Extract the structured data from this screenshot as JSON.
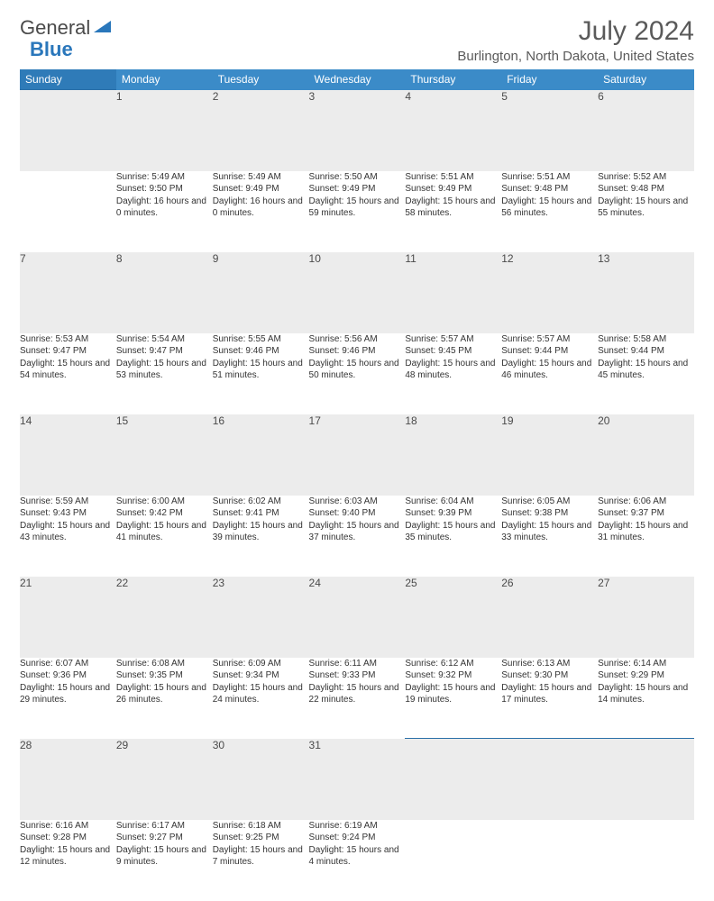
{
  "logo": {
    "word1": "General",
    "word2": "Blue"
  },
  "title": "July 2024",
  "location": "Burlington, North Dakota, United States",
  "colors": {
    "header_bg": "#3b8bc8",
    "header_text": "#ffffff",
    "daynum_bg": "#ececec",
    "row_divider": "#2a6fa8",
    "body_text": "#333333",
    "title_text": "#5a5a5a",
    "logo_gray": "#4a4a4a",
    "logo_blue": "#2a77bb"
  },
  "weekdays": [
    "Sunday",
    "Monday",
    "Tuesday",
    "Wednesday",
    "Thursday",
    "Friday",
    "Saturday"
  ],
  "weeks": [
    {
      "days": [
        null,
        {
          "n": "1",
          "sr": "5:49 AM",
          "ss": "9:50 PM",
          "dl": "16 hours and 0 minutes."
        },
        {
          "n": "2",
          "sr": "5:49 AM",
          "ss": "9:49 PM",
          "dl": "16 hours and 0 minutes."
        },
        {
          "n": "3",
          "sr": "5:50 AM",
          "ss": "9:49 PM",
          "dl": "15 hours and 59 minutes."
        },
        {
          "n": "4",
          "sr": "5:51 AM",
          "ss": "9:49 PM",
          "dl": "15 hours and 58 minutes."
        },
        {
          "n": "5",
          "sr": "5:51 AM",
          "ss": "9:48 PM",
          "dl": "15 hours and 56 minutes."
        },
        {
          "n": "6",
          "sr": "5:52 AM",
          "ss": "9:48 PM",
          "dl": "15 hours and 55 minutes."
        }
      ]
    },
    {
      "days": [
        {
          "n": "7",
          "sr": "5:53 AM",
          "ss": "9:47 PM",
          "dl": "15 hours and 54 minutes."
        },
        {
          "n": "8",
          "sr": "5:54 AM",
          "ss": "9:47 PM",
          "dl": "15 hours and 53 minutes."
        },
        {
          "n": "9",
          "sr": "5:55 AM",
          "ss": "9:46 PM",
          "dl": "15 hours and 51 minutes."
        },
        {
          "n": "10",
          "sr": "5:56 AM",
          "ss": "9:46 PM",
          "dl": "15 hours and 50 minutes."
        },
        {
          "n": "11",
          "sr": "5:57 AM",
          "ss": "9:45 PM",
          "dl": "15 hours and 48 minutes."
        },
        {
          "n": "12",
          "sr": "5:57 AM",
          "ss": "9:44 PM",
          "dl": "15 hours and 46 minutes."
        },
        {
          "n": "13",
          "sr": "5:58 AM",
          "ss": "9:44 PM",
          "dl": "15 hours and 45 minutes."
        }
      ]
    },
    {
      "days": [
        {
          "n": "14",
          "sr": "5:59 AM",
          "ss": "9:43 PM",
          "dl": "15 hours and 43 minutes."
        },
        {
          "n": "15",
          "sr": "6:00 AM",
          "ss": "9:42 PM",
          "dl": "15 hours and 41 minutes."
        },
        {
          "n": "16",
          "sr": "6:02 AM",
          "ss": "9:41 PM",
          "dl": "15 hours and 39 minutes."
        },
        {
          "n": "17",
          "sr": "6:03 AM",
          "ss": "9:40 PM",
          "dl": "15 hours and 37 minutes."
        },
        {
          "n": "18",
          "sr": "6:04 AM",
          "ss": "9:39 PM",
          "dl": "15 hours and 35 minutes."
        },
        {
          "n": "19",
          "sr": "6:05 AM",
          "ss": "9:38 PM",
          "dl": "15 hours and 33 minutes."
        },
        {
          "n": "20",
          "sr": "6:06 AM",
          "ss": "9:37 PM",
          "dl": "15 hours and 31 minutes."
        }
      ]
    },
    {
      "days": [
        {
          "n": "21",
          "sr": "6:07 AM",
          "ss": "9:36 PM",
          "dl": "15 hours and 29 minutes."
        },
        {
          "n": "22",
          "sr": "6:08 AM",
          "ss": "9:35 PM",
          "dl": "15 hours and 26 minutes."
        },
        {
          "n": "23",
          "sr": "6:09 AM",
          "ss": "9:34 PM",
          "dl": "15 hours and 24 minutes."
        },
        {
          "n": "24",
          "sr": "6:11 AM",
          "ss": "9:33 PM",
          "dl": "15 hours and 22 minutes."
        },
        {
          "n": "25",
          "sr": "6:12 AM",
          "ss": "9:32 PM",
          "dl": "15 hours and 19 minutes."
        },
        {
          "n": "26",
          "sr": "6:13 AM",
          "ss": "9:30 PM",
          "dl": "15 hours and 17 minutes."
        },
        {
          "n": "27",
          "sr": "6:14 AM",
          "ss": "9:29 PM",
          "dl": "15 hours and 14 minutes."
        }
      ]
    },
    {
      "days": [
        {
          "n": "28",
          "sr": "6:16 AM",
          "ss": "9:28 PM",
          "dl": "15 hours and 12 minutes."
        },
        {
          "n": "29",
          "sr": "6:17 AM",
          "ss": "9:27 PM",
          "dl": "15 hours and 9 minutes."
        },
        {
          "n": "30",
          "sr": "6:18 AM",
          "ss": "9:25 PM",
          "dl": "15 hours and 7 minutes."
        },
        {
          "n": "31",
          "sr": "6:19 AM",
          "ss": "9:24 PM",
          "dl": "15 hours and 4 minutes."
        },
        null,
        null,
        null
      ]
    }
  ],
  "labels": {
    "sunrise": "Sunrise:",
    "sunset": "Sunset:",
    "daylight": "Daylight:"
  }
}
